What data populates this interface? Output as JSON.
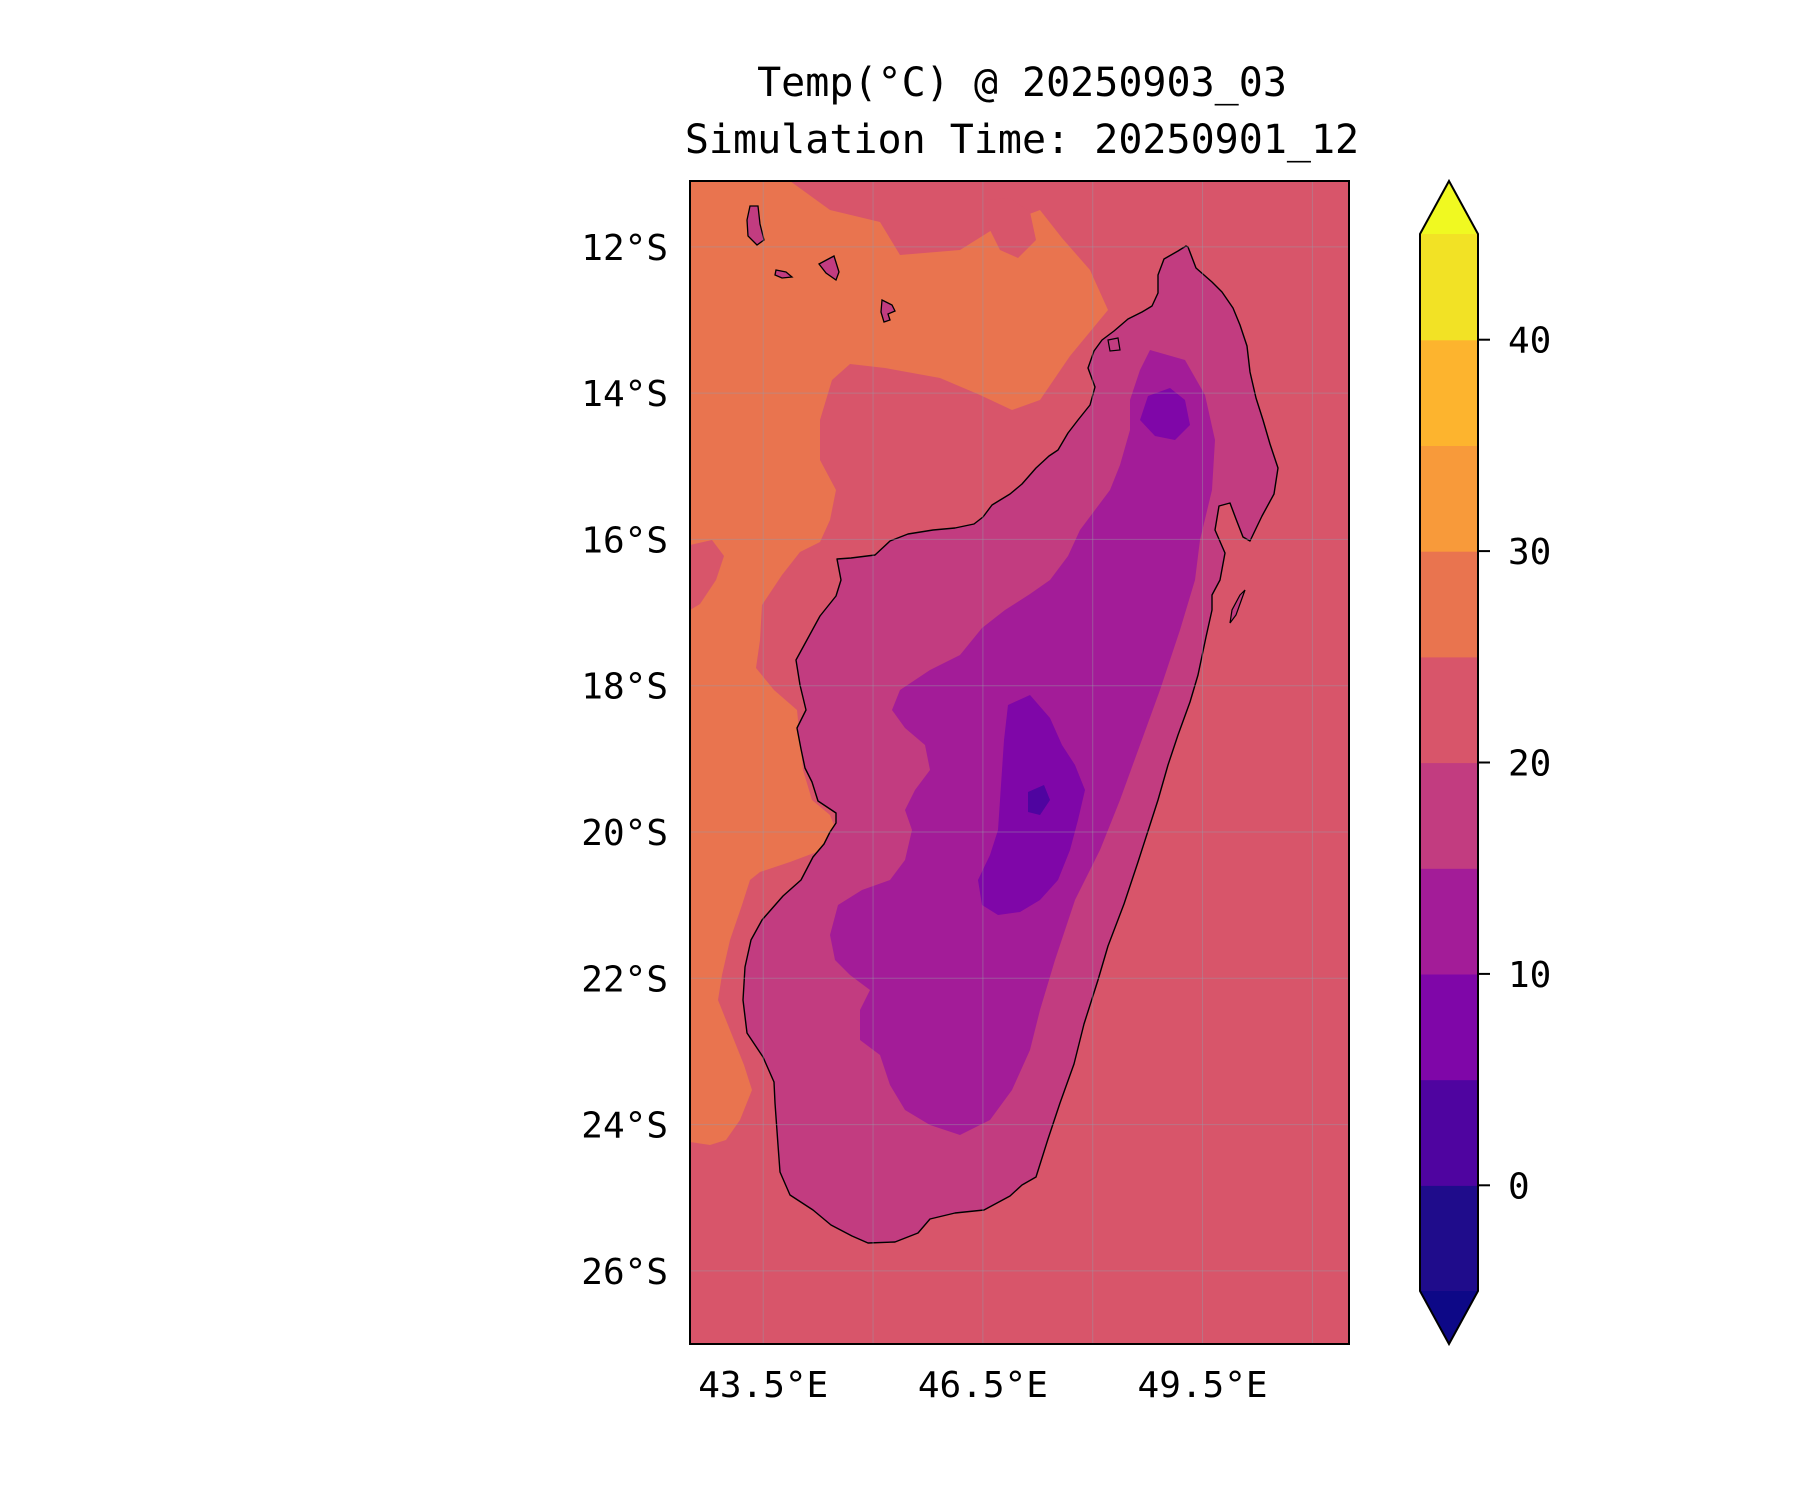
{
  "title": {
    "line1": "Temp(°C) @ 20250903_03",
    "line2": "Simulation Time: 20250901_12"
  },
  "map": {
    "lon_range": [
      42.5,
      51.5
    ],
    "lat_range": [
      -27.0,
      -11.1
    ],
    "lat_ticks": [
      {
        "value": -12,
        "label": "12°S"
      },
      {
        "value": -14,
        "label": "14°S"
      },
      {
        "value": -16,
        "label": "16°S"
      },
      {
        "value": -18,
        "label": "18°S"
      },
      {
        "value": -20,
        "label": "20°S"
      },
      {
        "value": -22,
        "label": "22°S"
      },
      {
        "value": -24,
        "label": "24°S"
      },
      {
        "value": -26,
        "label": "26°S"
      }
    ],
    "lon_ticks": [
      {
        "value": 43.5,
        "label": "43.5°E"
      },
      {
        "value": 46.5,
        "label": "46.5°E"
      },
      {
        "value": 49.5,
        "label": "49.5°E"
      }
    ],
    "extra_gridlines_lon": [
      45.0,
      48.0,
      51.0
    ],
    "gridlines": true,
    "colormap": "plasma"
  },
  "colorbar": {
    "levels": [
      -5,
      0,
      5,
      10,
      15,
      20,
      25,
      30,
      35,
      40,
      45
    ],
    "extend": "both",
    "colors": [
      "#1f0c8b",
      "#4f04a0",
      "#7f06a8",
      "#a31c98",
      "#c23c80",
      "#d8556a",
      "#e9744f",
      "#f89a3a",
      "#fdb42e",
      "#f2e225"
    ],
    "under_color": "#0d0887",
    "over_color": "#f0f921",
    "ticks": [
      {
        "value": 0,
        "label": "0"
      },
      {
        "value": 10,
        "label": "10"
      },
      {
        "value": 20,
        "label": "20"
      },
      {
        "value": 30,
        "label": "30"
      },
      {
        "value": 40,
        "label": "40"
      }
    ]
  }
}
